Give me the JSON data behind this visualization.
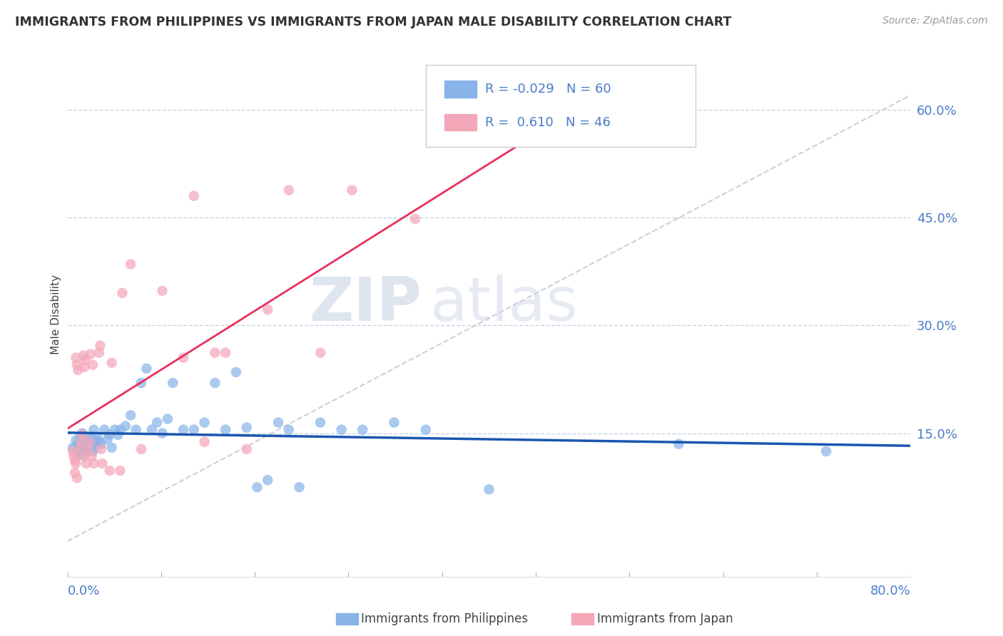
{
  "title": "IMMIGRANTS FROM PHILIPPINES VS IMMIGRANTS FROM JAPAN MALE DISABILITY CORRELATION CHART",
  "source": "Source: ZipAtlas.com",
  "ylabel": "Male Disability",
  "r_philippines": -0.029,
  "n_philippines": 60,
  "r_japan": 0.61,
  "n_japan": 46,
  "xlim": [
    0.0,
    0.8
  ],
  "ylim": [
    -0.05,
    0.68
  ],
  "right_yticks": [
    0.15,
    0.3,
    0.45,
    0.6
  ],
  "right_yticklabels": [
    "15.0%",
    "30.0%",
    "45.0%",
    "60.0%"
  ],
  "color_philippines": "#89b4e8",
  "color_japan": "#f4a7b9",
  "line_color_philippines": "#1a56b0",
  "line_color_japan": "#e8305a",
  "ref_line_color": "#c8c8c8",
  "background_color": "#ffffff",
  "grid_color": "#c8d4e8",
  "watermark_zip": "ZIP",
  "watermark_atlas": "atlas",
  "philippines_x": [
    0.005,
    0.008,
    0.01,
    0.011,
    0.012,
    0.013,
    0.014,
    0.015,
    0.016,
    0.017,
    0.018,
    0.019,
    0.02,
    0.021,
    0.022,
    0.023,
    0.024,
    0.025,
    0.026,
    0.027,
    0.028,
    0.03,
    0.032,
    0.035,
    0.038,
    0.04,
    0.042,
    0.045,
    0.048,
    0.05,
    0.055,
    0.06,
    0.065,
    0.07,
    0.075,
    0.08,
    0.085,
    0.09,
    0.095,
    0.1,
    0.11,
    0.12,
    0.13,
    0.14,
    0.15,
    0.16,
    0.17,
    0.18,
    0.19,
    0.2,
    0.21,
    0.22,
    0.24,
    0.26,
    0.28,
    0.31,
    0.34,
    0.4,
    0.58,
    0.72
  ],
  "philippines_y": [
    0.13,
    0.14,
    0.135,
    0.125,
    0.145,
    0.12,
    0.15,
    0.13,
    0.14,
    0.135,
    0.125,
    0.145,
    0.138,
    0.128,
    0.142,
    0.135,
    0.125,
    0.155,
    0.13,
    0.14,
    0.145,
    0.138,
    0.135,
    0.155,
    0.142,
    0.148,
    0.13,
    0.155,
    0.148,
    0.155,
    0.16,
    0.175,
    0.155,
    0.22,
    0.24,
    0.155,
    0.165,
    0.15,
    0.17,
    0.22,
    0.155,
    0.155,
    0.165,
    0.22,
    0.155,
    0.235,
    0.158,
    0.075,
    0.085,
    0.165,
    0.155,
    0.075,
    0.165,
    0.155,
    0.155,
    0.165,
    0.155,
    0.072,
    0.135,
    0.125
  ],
  "japan_x": [
    0.005,
    0.006,
    0.007,
    0.007,
    0.008,
    0.008,
    0.009,
    0.009,
    0.01,
    0.012,
    0.013,
    0.014,
    0.015,
    0.016,
    0.016,
    0.017,
    0.018,
    0.02,
    0.021,
    0.022,
    0.023,
    0.024,
    0.025,
    0.03,
    0.031,
    0.032,
    0.033,
    0.04,
    0.042,
    0.05,
    0.052,
    0.06,
    0.07,
    0.09,
    0.11,
    0.12,
    0.13,
    0.14,
    0.15,
    0.17,
    0.19,
    0.21,
    0.24,
    0.27,
    0.33,
    0.48
  ],
  "japan_y": [
    0.125,
    0.118,
    0.112,
    0.095,
    0.108,
    0.255,
    0.245,
    0.088,
    0.238,
    0.128,
    0.138,
    0.148,
    0.258,
    0.118,
    0.242,
    0.252,
    0.108,
    0.128,
    0.138,
    0.26,
    0.118,
    0.245,
    0.108,
    0.262,
    0.272,
    0.128,
    0.108,
    0.098,
    0.248,
    0.098,
    0.345,
    0.385,
    0.128,
    0.348,
    0.255,
    0.48,
    0.138,
    0.262,
    0.262,
    0.128,
    0.322,
    0.488,
    0.262,
    0.488,
    0.448,
    0.6
  ]
}
